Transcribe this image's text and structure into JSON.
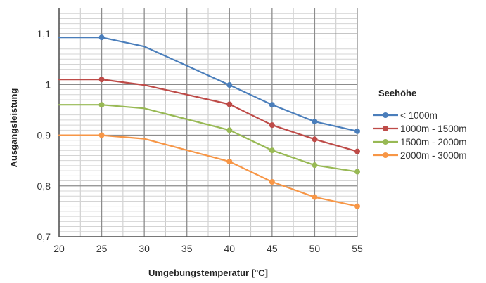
{
  "chart_data": {
    "type": "line",
    "xlabel": "Umgebungstemperatur [°C]",
    "ylabel": "Ausgangsleistung",
    "xlim": [
      20,
      55
    ],
    "ylim": [
      0.7,
      1.15
    ],
    "x_ticks": [
      20,
      25,
      30,
      35,
      40,
      45,
      50,
      55
    ],
    "x_tick_labels": [
      "20",
      "25",
      "30",
      "35",
      "40",
      "45",
      "50",
      "55"
    ],
    "y_ticks": [
      0.7,
      0.8,
      0.9,
      1.0,
      1.1
    ],
    "y_tick_labels": [
      "0,7",
      "0,8",
      "0,9",
      "1",
      "1,1"
    ],
    "grid": true,
    "legend_title": "Seehöhe",
    "legend_position": "right",
    "x": [
      20,
      25,
      30,
      40,
      45,
      50,
      55
    ],
    "series": [
      {
        "name": "< 1000m",
        "color": "#4a7ebb",
        "values": [
          1.093,
          1.093,
          1.075,
          0.999,
          0.96,
          0.927,
          0.908
        ],
        "markers": [
          false,
          true,
          false,
          true,
          true,
          true,
          true
        ]
      },
      {
        "name": "1000m - 1500m",
        "color": "#be4b48",
        "values": [
          1.01,
          1.01,
          0.999,
          0.961,
          0.92,
          0.892,
          0.868
        ],
        "markers": [
          false,
          true,
          false,
          true,
          true,
          true,
          true
        ]
      },
      {
        "name": "1500m - 2000m",
        "color": "#98b954",
        "values": [
          0.96,
          0.96,
          0.953,
          0.91,
          0.87,
          0.841,
          0.828
        ],
        "markers": [
          false,
          true,
          false,
          true,
          true,
          true,
          true
        ]
      },
      {
        "name": "2000m - 3000m",
        "color": "#f79646",
        "values": [
          0.9,
          0.9,
          0.893,
          0.848,
          0.808,
          0.778,
          0.76
        ],
        "markers": [
          false,
          true,
          false,
          true,
          true,
          true,
          true
        ]
      }
    ]
  }
}
